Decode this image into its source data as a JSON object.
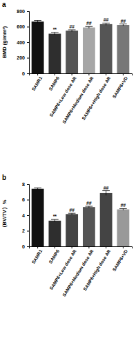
{
  "chart_data": [
    {
      "type": "bar",
      "title": "a",
      "y_label": "BMD (g/mm³)",
      "categories": [
        "SAMR1",
        "SAMP6",
        "SAMP6+Low dose AR",
        "SAMP6+Medium dose AR",
        "SAMP6++High dose AR",
        "SAMP6+VD"
      ],
      "values": [
        665,
        510,
        548,
        590,
        632,
        622
      ],
      "errors": [
        15,
        18,
        12,
        12,
        14,
        12
      ],
      "annotations": [
        null,
        "**",
        "##",
        "##",
        "##",
        "##"
      ],
      "colors": [
        "#111111",
        "#2e2e2e",
        "#555555",
        "#a6a6a6",
        "#555555",
        "#777777"
      ],
      "ylim": [
        0,
        800
      ],
      "yticks": [
        0,
        200,
        400,
        600,
        800
      ]
    },
    {
      "type": "bar",
      "title": "b",
      "y_label": "（BV/TV）%",
      "categories": [
        "SAMR1",
        "SAMP6",
        "SAMP6+Low dose AR",
        "SAMP6+Medium dose AR",
        "SAMP6+High dose AR",
        "SAMP6+VD"
      ],
      "values": [
        7.4,
        3.3,
        4.15,
        5.05,
        6.85,
        4.75
      ],
      "errors": [
        0.1,
        0.15,
        0.1,
        0.1,
        0.3,
        0.1
      ],
      "annotations": [
        null,
        "**",
        "##",
        "##",
        "##",
        "##"
      ],
      "colors": [
        "#111111",
        "#2e2e2e",
        "#444444",
        "#555555",
        "#444444",
        "#999999"
      ],
      "ylim": [
        0,
        8
      ],
      "yticks": [
        0,
        2,
        4,
        6,
        8
      ]
    }
  ]
}
